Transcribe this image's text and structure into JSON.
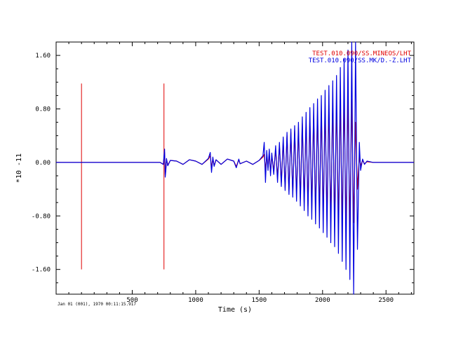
{
  "chart_data": {
    "type": "line",
    "xlabel": "Time (s)",
    "ylabel": "*10 -11",
    "xlim": [
      -100,
      2720
    ],
    "ylim": [
      -1.97,
      1.8
    ],
    "x_ticks": [
      500,
      1000,
      1500,
      2000,
      2500
    ],
    "x_tick_labels": [
      "500",
      "1000",
      "1500",
      "2000",
      "2500"
    ],
    "y_ticks": [
      1.6,
      0.8,
      0.0,
      -0.8,
      -1.6
    ],
    "y_tick_labels": [
      "1.60",
      "0.80",
      "0.00",
      "-0.80",
      "-1.60"
    ],
    "grid": false,
    "legend_position": "top-right",
    "date_label": "Jan 01 (001), 1970 00:11:15.917",
    "markers": [
      {
        "x": 100,
        "ymin": -1.6,
        "ymax": 1.18
      },
      {
        "x": 750,
        "ymin": -1.6,
        "ymax": 1.18
      }
    ],
    "series": [
      {
        "name": "TEST.010.090/SS.MINEOS/LHT",
        "color": "#e00000",
        "x": [
          -100,
          720,
          745,
          755,
          760,
          765,
          770,
          780,
          800,
          850,
          900,
          950,
          1000,
          1050,
          1100,
          1115,
          1125,
          1135,
          1145,
          1160,
          1200,
          1250,
          1300,
          1320,
          1340,
          1350,
          1400,
          1450,
          1500,
          1530,
          1540,
          1550,
          1560,
          1570,
          1580,
          1590,
          1600,
          1615,
          1630,
          1645,
          1660,
          1675,
          1690,
          1705,
          1720,
          1735,
          1750,
          1765,
          1780,
          1795,
          1810,
          1825,
          1840,
          1855,
          1870,
          1885,
          1900,
          1915,
          1930,
          1945,
          1960,
          1975,
          1990,
          2005,
          2020,
          2035,
          2050,
          2065,
          2080,
          2095,
          2110,
          2125,
          2140,
          2155,
          2170,
          2185,
          2200,
          2215,
          2230,
          2245,
          2260,
          2275,
          2290,
          2300,
          2315,
          2330,
          2350,
          2400,
          2500,
          2720
        ],
        "y": [
          0,
          0,
          -0.03,
          0.15,
          -0.18,
          -0.1,
          0.05,
          -0.04,
          0.03,
          0.02,
          -0.03,
          0.04,
          0.02,
          -0.03,
          0.05,
          0.1,
          -0.08,
          0.06,
          -0.05,
          0.04,
          -0.03,
          0.05,
          0.02,
          -0.06,
          0.04,
          -0.02,
          0.02,
          -0.03,
          0.03,
          0.08,
          0.12,
          -0.12,
          0.1,
          -0.08,
          0.12,
          -0.15,
          0.1,
          -0.12,
          0.18,
          -0.22,
          0.25,
          -0.3,
          0.32,
          -0.38,
          0.4,
          -0.42,
          0.45,
          -0.46,
          0.48,
          -0.5,
          0.52,
          -0.55,
          0.58,
          -0.6,
          0.62,
          -0.65,
          0.66,
          -0.68,
          0.7,
          -0.72,
          0.74,
          -0.75,
          0.78,
          -0.8,
          0.82,
          -0.83,
          0.85,
          -0.86,
          0.88,
          -0.9,
          0.9,
          -0.92,
          0.92,
          -0.93,
          0.95,
          -0.95,
          0.96,
          -0.96,
          0.94,
          -0.9,
          0.6,
          -0.4,
          0.1,
          -0.05,
          0.03,
          -0.02,
          0.01,
          0,
          0,
          0
        ]
      },
      {
        "name": "TEST.010.090/SS.MK/D.-Z.LHT",
        "color": "#0000e0",
        "x": [
          -100,
          720,
          745,
          755,
          760,
          765,
          770,
          780,
          800,
          850,
          900,
          950,
          1000,
          1050,
          1100,
          1115,
          1125,
          1135,
          1145,
          1160,
          1200,
          1250,
          1300,
          1320,
          1340,
          1350,
          1400,
          1450,
          1500,
          1530,
          1540,
          1550,
          1560,
          1570,
          1580,
          1590,
          1600,
          1615,
          1630,
          1645,
          1660,
          1675,
          1690,
          1705,
          1720,
          1735,
          1750,
          1765,
          1780,
          1795,
          1810,
          1825,
          1840,
          1855,
          1870,
          1885,
          1900,
          1915,
          1930,
          1945,
          1960,
          1975,
          1990,
          2005,
          2020,
          2035,
          2050,
          2065,
          2080,
          2095,
          2110,
          2125,
          2140,
          2155,
          2170,
          2185,
          2200,
          2215,
          2230,
          2245,
          2260,
          2275,
          2290,
          2300,
          2315,
          2330,
          2350,
          2400,
          2500,
          2720
        ],
        "y": [
          0,
          0,
          -0.03,
          0.2,
          -0.22,
          -0.12,
          0.06,
          -0.05,
          0.03,
          0.02,
          -0.03,
          0.04,
          0.02,
          -0.03,
          0.06,
          0.15,
          -0.15,
          0.08,
          -0.06,
          0.04,
          -0.03,
          0.05,
          0.02,
          -0.08,
          0.05,
          -0.02,
          0.02,
          -0.03,
          0.03,
          0.1,
          0.3,
          -0.3,
          0.18,
          -0.12,
          0.2,
          -0.2,
          0.14,
          -0.18,
          0.25,
          -0.3,
          0.3,
          -0.36,
          0.38,
          -0.42,
          0.45,
          -0.48,
          0.5,
          -0.52,
          0.55,
          -0.58,
          0.6,
          -0.65,
          0.68,
          -0.72,
          0.75,
          -0.8,
          0.82,
          -0.85,
          0.88,
          -0.92,
          0.95,
          -0.98,
          1.0,
          -1.05,
          1.08,
          -1.12,
          1.15,
          -1.2,
          1.22,
          -1.26,
          1.3,
          -1.36,
          1.42,
          -1.48,
          1.55,
          -1.6,
          1.68,
          -1.75,
          1.8,
          -1.97,
          1.8,
          -1.3,
          0.3,
          -0.12,
          0.05,
          -0.03,
          0.02,
          0,
          0,
          0
        ]
      }
    ]
  }
}
